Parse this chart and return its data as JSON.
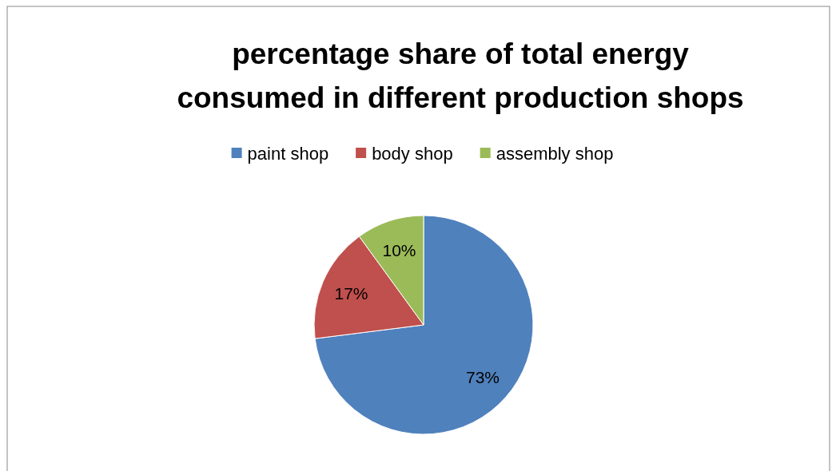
{
  "chart_data": {
    "type": "pie",
    "title": "percentage share of total energy consumed in different production shops",
    "categories": [
      "paint shop",
      "body shop",
      "assembly shop"
    ],
    "values": [
      73,
      17,
      10
    ],
    "colors": [
      "#4f81bd",
      "#c0504d",
      "#9bbb59"
    ],
    "value_labels": [
      "73%",
      "17%",
      "10%"
    ],
    "legend": "top"
  }
}
